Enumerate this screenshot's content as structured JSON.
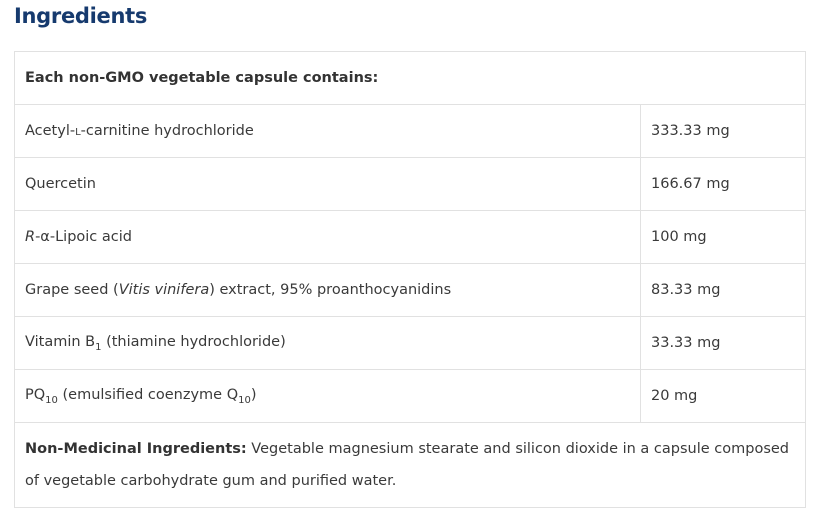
{
  "title": "Ingredients",
  "table": {
    "header": "Each non-GMO vegetable capsule contains:",
    "rows": [
      {
        "pre": "Acetyl-",
        "sc": "l",
        "post": "-carnitine hydrochloride",
        "amount": "333.33 mg"
      },
      {
        "pre": "Quercetin",
        "amount": "166.67 mg"
      },
      {
        "it": "R",
        "post": "-α-Lipoic acid",
        "amount": "100 mg"
      },
      {
        "pre": "Grape seed (",
        "it": "Vitis vinifera",
        "post": ") extract, 95% proanthocyanidins",
        "amount": "83.33 mg"
      },
      {
        "pre": "Vitamin B",
        "sub": "1",
        "post": " (thiamine hydrochloride)",
        "amount": "33.33 mg"
      },
      {
        "pre": "PQ",
        "sub": "10",
        "post": " (emulsified coenzyme Q",
        "sub2": "10",
        "post2": ")",
        "amount": "20 mg"
      }
    ],
    "footer_label": "Non-Medicinal Ingredients:",
    "footer_text": " Vegetable magnesium stearate and silicon dioxide in a capsule composed of vegetable carbohydrate gum and purified water."
  },
  "colors": {
    "title": "#163a6e",
    "border": "#e1e1e1"
  }
}
